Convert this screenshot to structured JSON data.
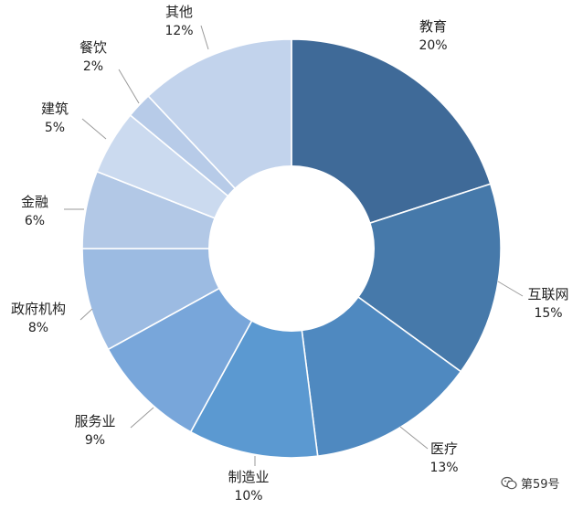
{
  "chart_data": {
    "type": "pie",
    "title": "",
    "slices": [
      {
        "label": "教育",
        "value": 20,
        "value_label": "20%",
        "color": "#3f6a98"
      },
      {
        "label": "互联网",
        "value": 15,
        "value_label": "15%",
        "color": "#4679aa"
      },
      {
        "label": "医疗",
        "value": 13,
        "value_label": "13%",
        "color": "#4f89c0"
      },
      {
        "label": "制造业",
        "value": 10,
        "value_label": "10%",
        "color": "#5b99d1"
      },
      {
        "label": "服务业",
        "value": 9,
        "value_label": "9%",
        "color": "#78a6da"
      },
      {
        "label": "政府机构",
        "value": 8,
        "value_label": "8%",
        "color": "#9cbbe2"
      },
      {
        "label": "金融",
        "value": 6,
        "value_label": "6%",
        "color": "#b2c8e6"
      },
      {
        "label": "建筑",
        "value": 5,
        "value_label": "5%",
        "color": "#cbdaef"
      },
      {
        "label": "餐饮",
        "value": 2,
        "value_label": "2%",
        "color": "#b7cbe8"
      },
      {
        "label": "其他",
        "value": 12,
        "value_label": "12%",
        "color": "#c2d3ec"
      }
    ],
    "legend": "none",
    "hole": "donut"
  },
  "watermark": {
    "text": "第59号",
    "icon": "wechat-icon"
  }
}
